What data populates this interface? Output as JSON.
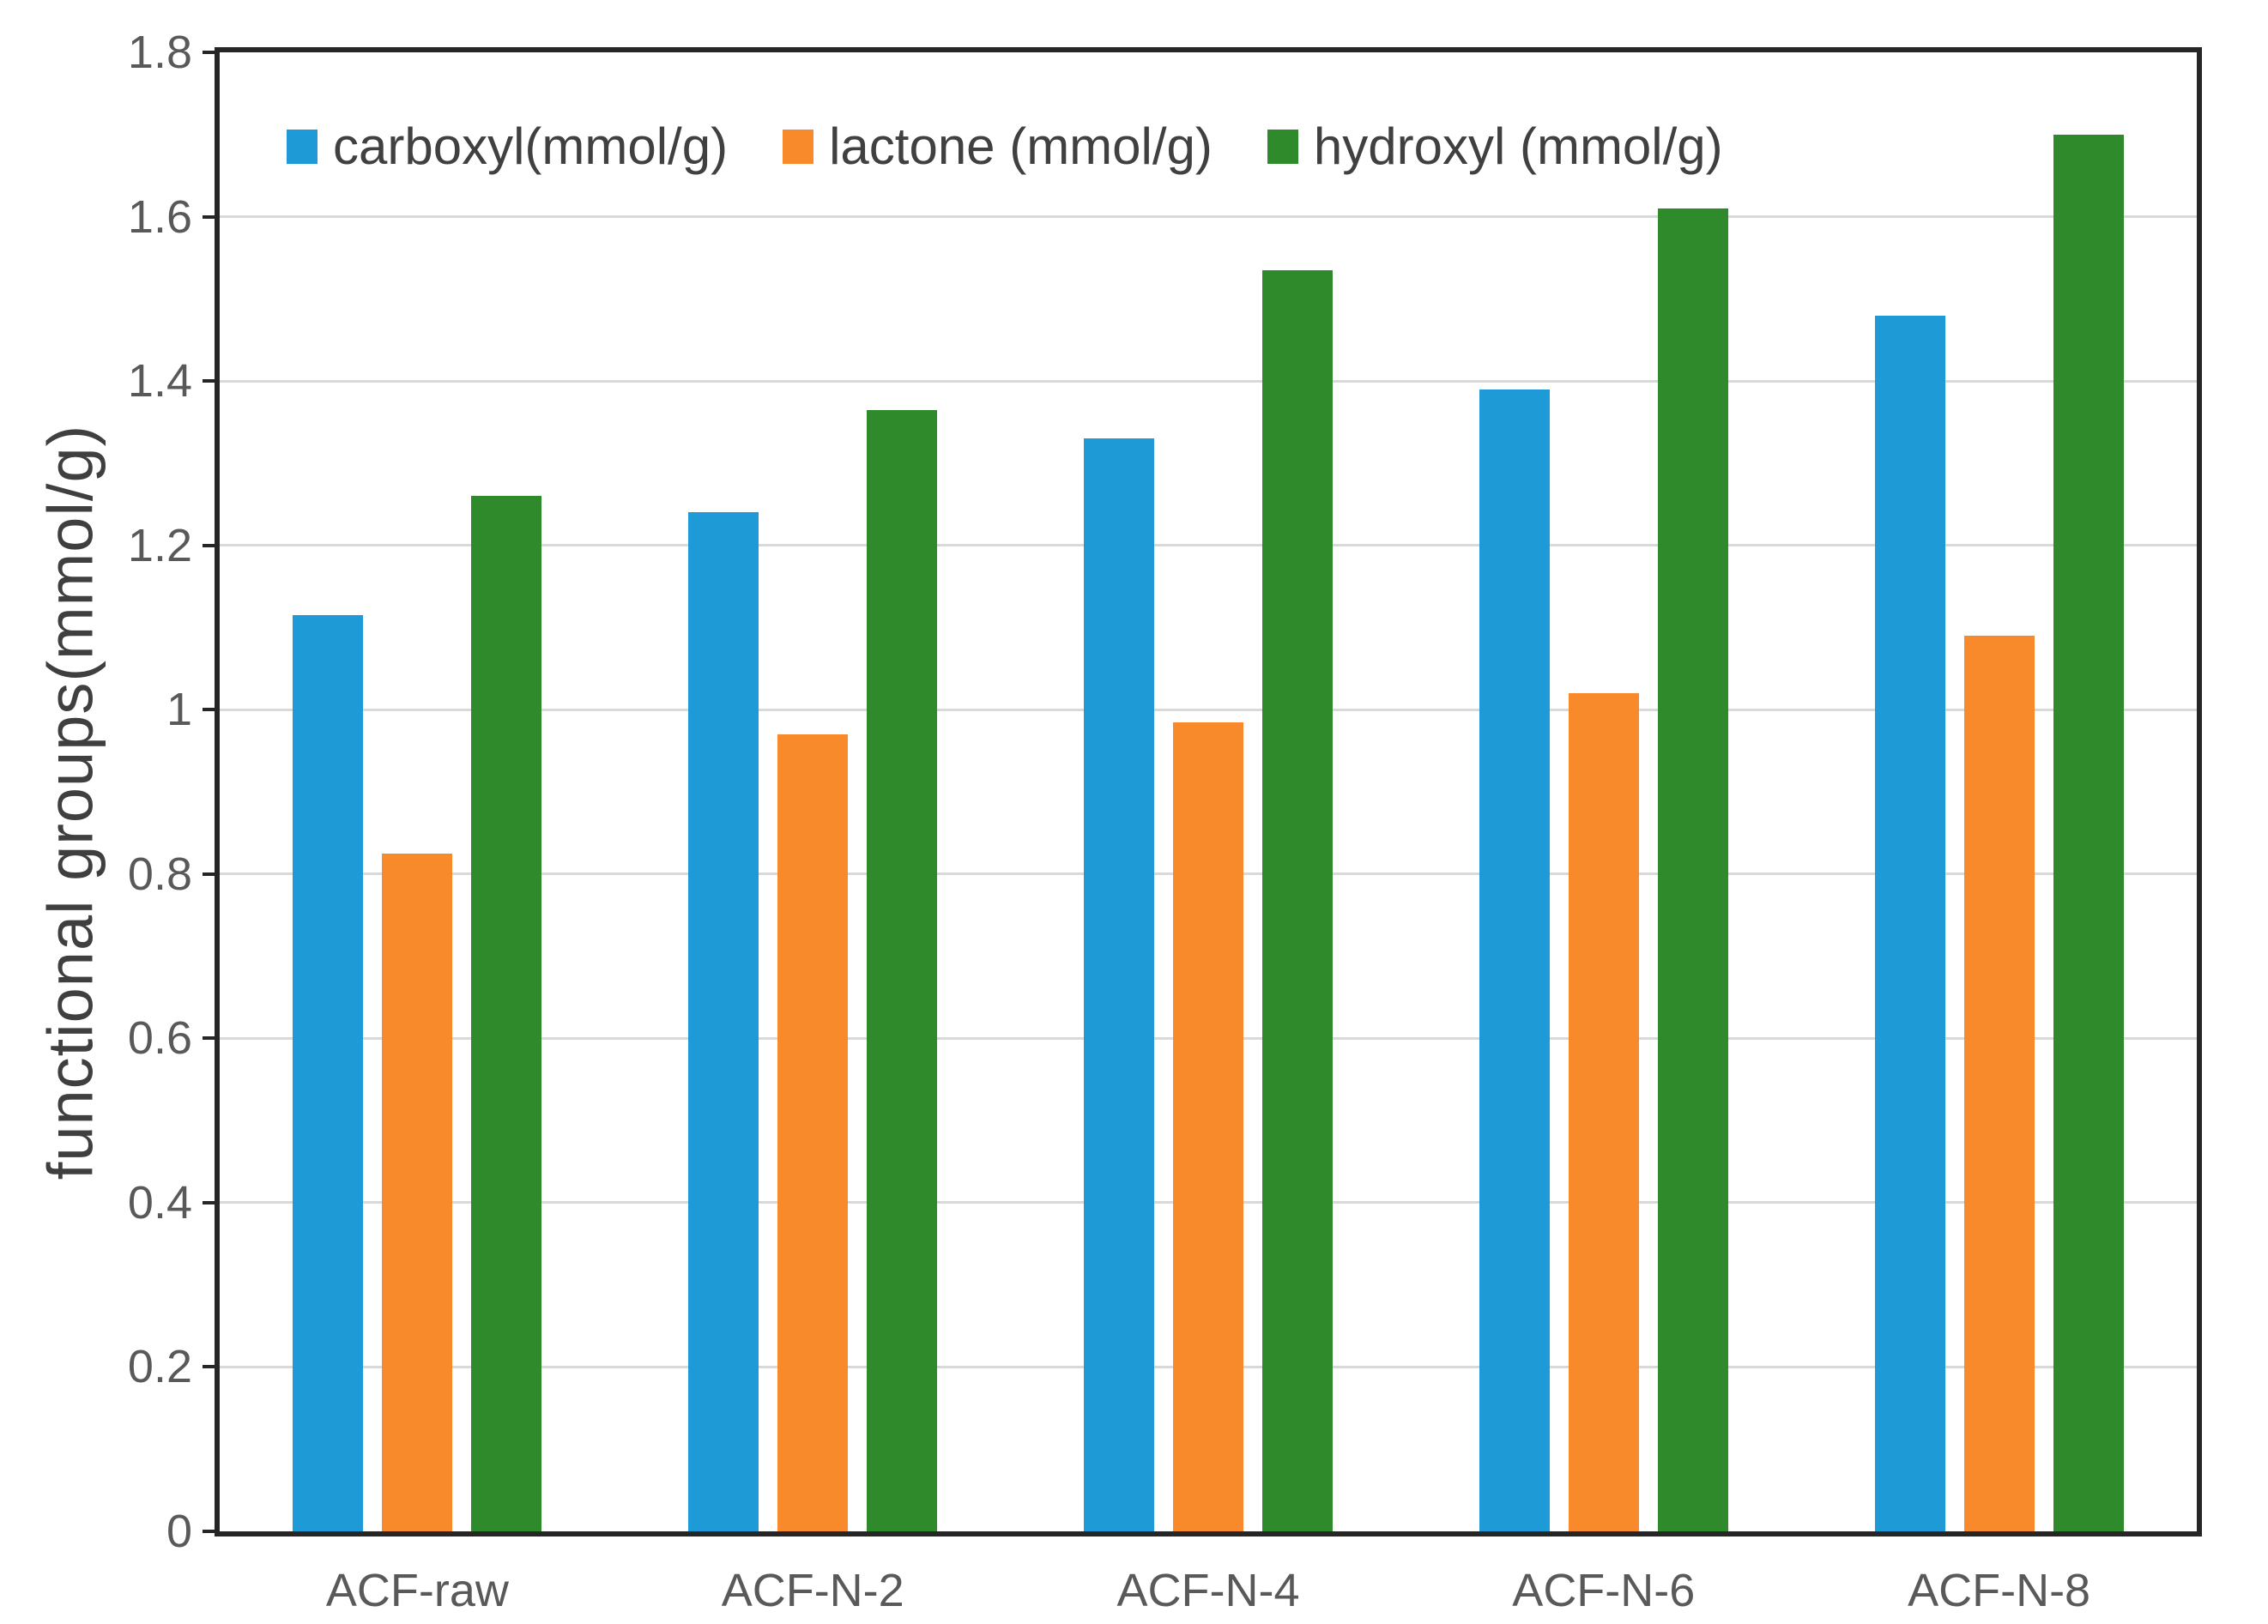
{
  "chart_data": {
    "type": "bar",
    "title": "",
    "xlabel": "",
    "ylabel": "functional groups(mmol/g)",
    "ylim": [
      0,
      1.8
    ],
    "yticks": [
      0,
      0.2,
      0.4,
      0.6,
      0.8,
      1,
      1.2,
      1.4,
      1.6,
      1.8
    ],
    "ytick_labels": [
      "0",
      "0.2",
      "0.4",
      "0.6",
      "0.8",
      "1",
      "1.2",
      "1.4",
      "1.6",
      "1.8"
    ],
    "grid": true,
    "legend_position": "top-left-inside",
    "categories": [
      "ACF-raw",
      "ACF-N-2",
      "ACF-N-4",
      "ACF-N-6",
      "ACF-N-8"
    ],
    "series": [
      {
        "name": "carboxyl(mmol/g)",
        "color": "#1e9ad6",
        "values": [
          1.115,
          1.24,
          1.33,
          1.39,
          1.48
        ]
      },
      {
        "name": "lactone (mmol/g)",
        "color": "#f98a2b",
        "values": [
          0.825,
          0.97,
          0.985,
          1.02,
          1.09
        ]
      },
      {
        "name": "hydroxyl (mmol/g)",
        "color": "#2f8a2b",
        "values": [
          1.26,
          1.365,
          1.535,
          1.61,
          1.7
        ]
      }
    ],
    "colors": {
      "frame": "#262626",
      "gridline": "#d9d9d9",
      "tick_label": "#595959",
      "axis_title": "#3f3f3f",
      "legend_text": "#404040"
    }
  }
}
